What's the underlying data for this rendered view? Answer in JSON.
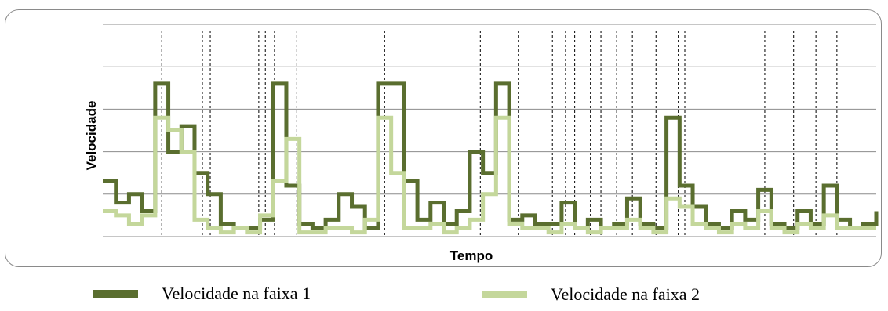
{
  "chart_data": {
    "type": "line",
    "xlabel": "Tempo",
    "ylabel": "Velocidade",
    "grid": true,
    "ylim": [
      0,
      5
    ],
    "n_points": 60,
    "series": [
      {
        "name": "Velocidade na faixa 1",
        "color": "#5a6e2f",
        "values": [
          1.3,
          0.8,
          1.0,
          0.6,
          3.6,
          2.0,
          2.6,
          1.5,
          1.0,
          0.3,
          0.2,
          0.2,
          0.4,
          3.6,
          1.2,
          0.3,
          0.2,
          0.4,
          1.0,
          0.7,
          0.2,
          3.6,
          3.6,
          1.3,
          0.4,
          0.8,
          0.3,
          0.6,
          2.0,
          1.5,
          3.6,
          0.4,
          0.5,
          0.3,
          0.3,
          0.8,
          0.2,
          0.4,
          0.2,
          0.3,
          0.9,
          0.3,
          0.2,
          2.8,
          1.2,
          0.7,
          0.3,
          0.2,
          0.6,
          0.4,
          1.1,
          0.3,
          0.2,
          0.6,
          0.3,
          1.2,
          0.4,
          0.2,
          0.3,
          0.6
        ]
      },
      {
        "name": "Velocidade na faixa 2",
        "color": "#c4d79b",
        "values": [
          0.6,
          0.5,
          0.3,
          0.5,
          2.8,
          2.5,
          2.0,
          0.4,
          0.2,
          0.1,
          0.2,
          0.1,
          0.5,
          1.3,
          2.3,
          0.1,
          0.1,
          0.2,
          0.2,
          0.1,
          0.4,
          2.8,
          1.5,
          0.2,
          0.2,
          0.3,
          0.1,
          0.2,
          0.4,
          1.0,
          2.8,
          0.3,
          0.2,
          0.2,
          0.1,
          0.3,
          0.2,
          0.1,
          0.2,
          0.2,
          0.4,
          0.2,
          0.1,
          0.9,
          0.7,
          0.3,
          0.2,
          0.1,
          0.3,
          0.2,
          0.6,
          0.2,
          0.1,
          0.3,
          0.2,
          0.5,
          0.2,
          0.2,
          0.2,
          0.2
        ]
      }
    ],
    "event_markers": [
      4.5,
      7.6,
      8.2,
      11.9,
      12.4,
      13.1,
      14.8,
      21.5,
      28.8,
      31.7,
      34.3,
      35.3,
      36.0,
      37.2,
      38.0,
      39.2,
      40.4,
      42.2,
      43.9,
      44.4,
      50.5,
      52.7,
      54.4,
      56.0
    ]
  }
}
